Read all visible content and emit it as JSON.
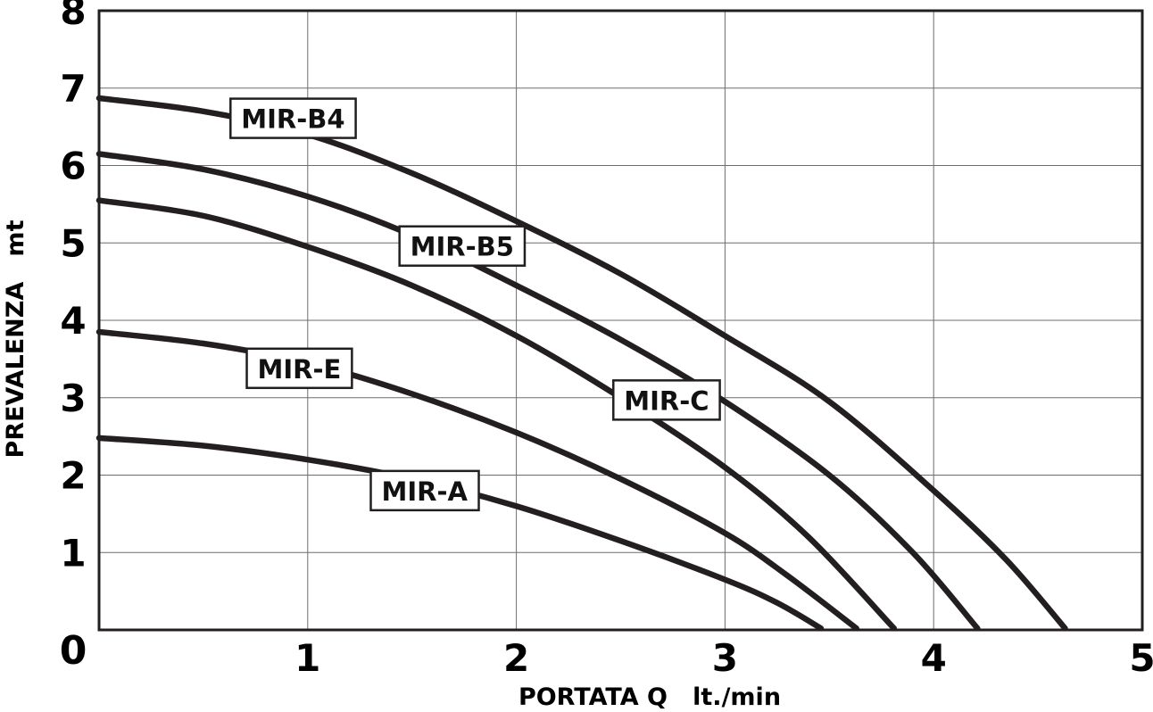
{
  "chart_data": {
    "type": "line",
    "xlabel": "PORTATA Q   lt./min",
    "ylabel": "PREVALENZA   mt",
    "xlim": [
      0,
      5
    ],
    "ylim": [
      0,
      8
    ],
    "x_ticks": [
      "0",
      "1",
      "2",
      "3",
      "4",
      "5"
    ],
    "y_ticks": [
      "0",
      "1",
      "2",
      "3",
      "4",
      "5",
      "6",
      "7",
      "8"
    ],
    "grid": true,
    "legend": "inline labels on curves",
    "line_color": "#231f20",
    "series": [
      {
        "name": "MIR-B4",
        "x": [
          0,
          0.5,
          1,
          1.5,
          2,
          2.5,
          3,
          3.5,
          4,
          4.35,
          4.63
        ],
        "y": [
          6.87,
          6.7,
          6.4,
          5.9,
          5.28,
          4.6,
          3.8,
          2.95,
          1.8,
          0.9,
          0.02
        ]
      },
      {
        "name": "MIR-B5",
        "x": [
          0,
          0.5,
          1,
          1.5,
          2,
          2.5,
          3,
          3.5,
          3.9,
          4.21
        ],
        "y": [
          6.15,
          5.95,
          5.6,
          5.1,
          4.45,
          3.75,
          2.95,
          2.0,
          1.0,
          0.02
        ]
      },
      {
        "name": "MIR-C",
        "x": [
          0,
          0.5,
          1,
          1.5,
          2,
          2.5,
          3,
          3.4,
          3.81
        ],
        "y": [
          5.55,
          5.35,
          4.95,
          4.45,
          3.8,
          3.0,
          2.1,
          1.2,
          0.02
        ]
      },
      {
        "name": "MIR-E",
        "x": [
          0,
          0.5,
          1,
          1.5,
          2,
          2.5,
          3,
          3.3,
          3.63
        ],
        "y": [
          3.85,
          3.7,
          3.45,
          3.05,
          2.55,
          1.95,
          1.25,
          0.7,
          0.02
        ]
      },
      {
        "name": "MIR-A",
        "x": [
          0,
          0.5,
          1,
          1.5,
          2,
          2.5,
          3,
          3.25,
          3.46
        ],
        "y": [
          2.48,
          2.38,
          2.2,
          1.95,
          1.6,
          1.15,
          0.65,
          0.35,
          0.02
        ]
      }
    ],
    "labels": [
      {
        "text": "MIR-B4",
        "x": 0.93,
        "y": 6.61
      },
      {
        "text": "MIR-B5",
        "x": 1.74,
        "y": 4.96
      },
      {
        "text": "MIR-C",
        "x": 2.72,
        "y": 2.97
      },
      {
        "text": "MIR-E",
        "x": 0.96,
        "y": 3.38
      },
      {
        "text": "MIR-A",
        "x": 1.56,
        "y": 1.8
      }
    ]
  }
}
